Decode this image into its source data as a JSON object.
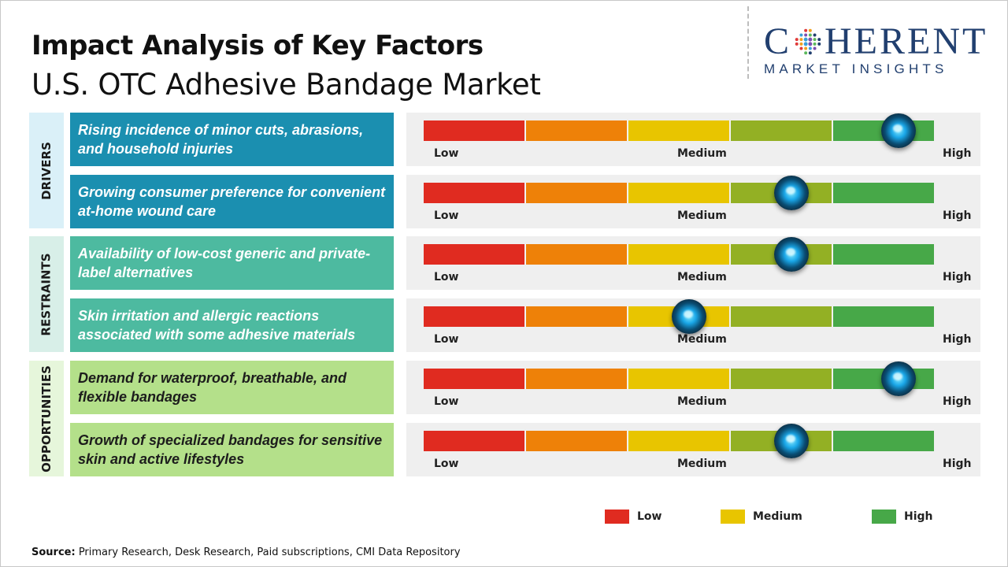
{
  "title": "Impact Analysis of Key Factors",
  "subtitle": "U.S. OTC Adhesive Bandage Market",
  "logo": {
    "top": "C HERENT",
    "brand_first": "C",
    "brand_rest": "HERENT",
    "bottom": "MARKET INSIGHTS"
  },
  "categories": [
    "DRIVERS",
    "RESTRAINTS",
    "OPPORTUNITIES"
  ],
  "colors": {
    "low": "#e02b20",
    "low_medium": "#ee8108",
    "medium": "#e8c500",
    "medium_high": "#93b024",
    "high": "#47a848",
    "drivers": "#1b8fb0",
    "restraints": "#4dbaa0",
    "opportunities": "#b4e08a"
  },
  "scale_labels": {
    "low": "Low",
    "medium": "Medium",
    "high": "High"
  },
  "chart_data": {
    "type": "table",
    "scale": [
      "Low",
      "Medium",
      "High"
    ],
    "rows": [
      {
        "category": "DRIVERS",
        "factor": "Rising incidence of minor cuts, abrasions, and household injuries",
        "impact": 0.93
      },
      {
        "category": "DRIVERS",
        "factor": "Growing consumer preference for convenient at-home wound care",
        "impact": 0.72
      },
      {
        "category": "RESTRAINTS",
        "factor": "Availability of low-cost generic and private-label alternatives",
        "impact": 0.72
      },
      {
        "category": "RESTRAINTS",
        "factor": "Skin irritation and allergic reactions associated with some adhesive materials",
        "impact": 0.52
      },
      {
        "category": "OPPORTUNITIES",
        "factor": "Demand for waterproof, breathable, and flexible bandages",
        "impact": 0.93
      },
      {
        "category": "OPPORTUNITIES",
        "factor": "Growth of specialized bandages for sensitive skin and active lifestyles",
        "impact": 0.72
      }
    ]
  },
  "legend": [
    {
      "label": "Low",
      "color": "#e02b20"
    },
    {
      "label": "Medium",
      "color": "#e8c500"
    },
    {
      "label": "High",
      "color": "#47a848"
    }
  ],
  "source": {
    "label": "Source:",
    "text": " Primary Research, Desk Research, Paid subscriptions, CMI Data Repository"
  }
}
